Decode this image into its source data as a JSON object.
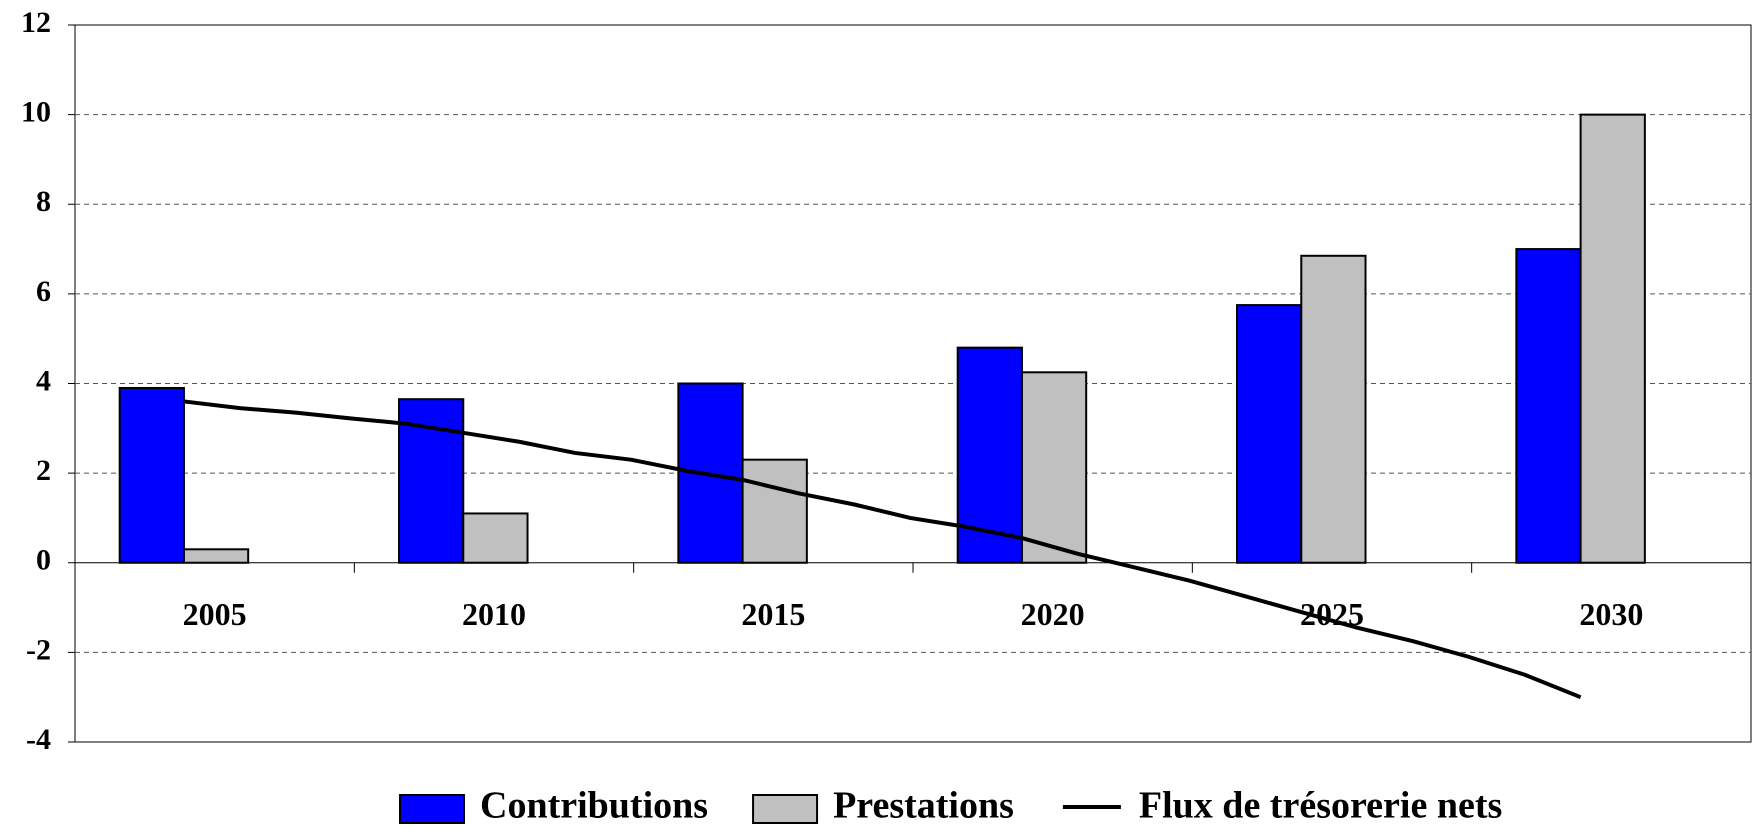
{
  "chart_data": {
    "type": "bar",
    "categories": [
      "2005",
      "2010",
      "2015",
      "2020",
      "2025",
      "2030"
    ],
    "series": [
      {
        "name": "Contributions",
        "color": "#0000ff",
        "values": [
          3.9,
          3.65,
          4.0,
          4.8,
          5.75,
          7.0
        ]
      },
      {
        "name": "Prestations",
        "color": "#c0c0c0",
        "values": [
          0.3,
          1.1,
          2.3,
          4.25,
          6.85,
          10.0
        ]
      },
      {
        "name": "Flux de trésorerie nets",
        "type": "line",
        "color": "#000000",
        "x": [
          2005,
          2006,
          2007,
          2008,
          2009,
          2010,
          2011,
          2012,
          2013,
          2014,
          2015,
          2016,
          2017,
          2018,
          2019,
          2020,
          2021,
          2022,
          2023,
          2024,
          2025,
          2026,
          2027,
          2028,
          2029,
          2030
        ],
        "values": [
          3.6,
          3.45,
          3.35,
          3.22,
          3.1,
          2.9,
          2.7,
          2.45,
          2.3,
          2.05,
          1.85,
          1.55,
          1.3,
          1.0,
          0.8,
          0.55,
          0.2,
          -0.1,
          -0.4,
          -0.75,
          -1.1,
          -1.45,
          -1.75,
          -2.1,
          -2.5,
          -3.0
        ]
      }
    ],
    "ylim": [
      -4,
      12
    ],
    "yticks": [
      -4,
      -2,
      0,
      2,
      4,
      6,
      8,
      10,
      12
    ],
    "grid": true,
    "legend": "bottom"
  }
}
